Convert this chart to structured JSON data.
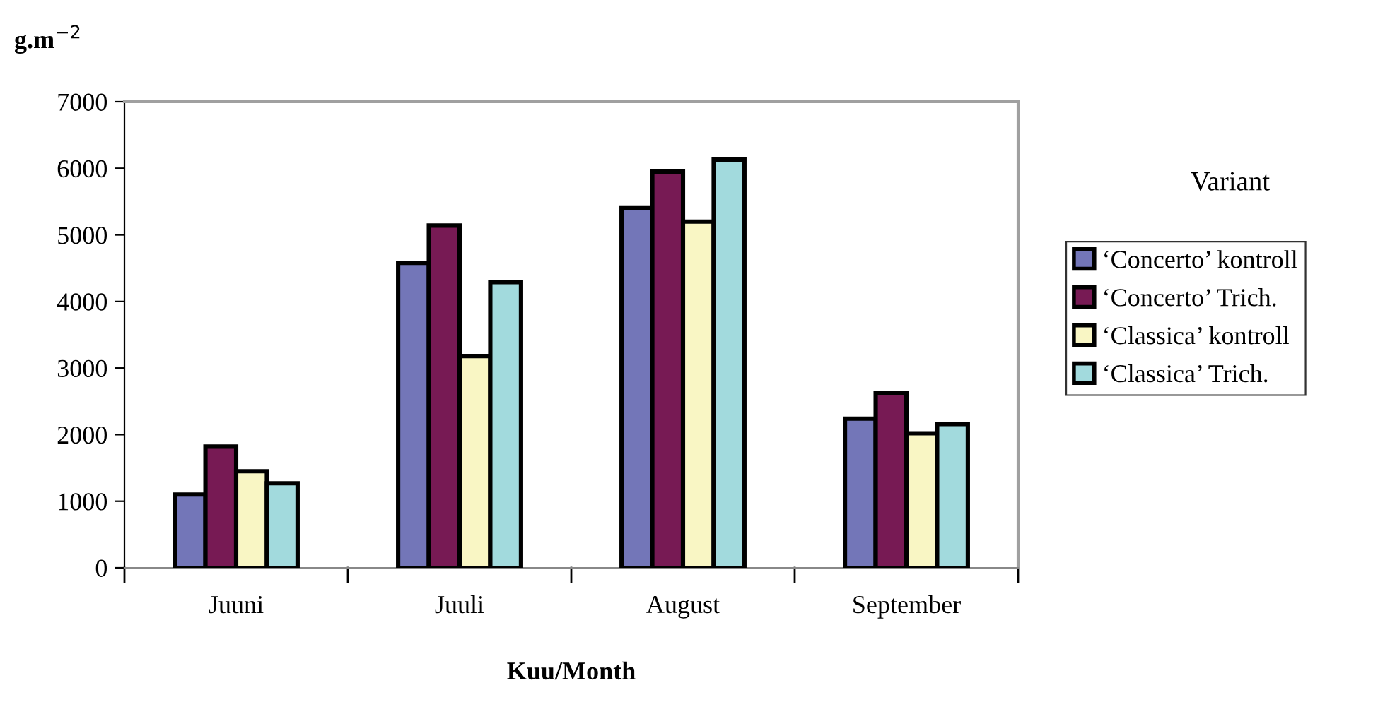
{
  "chart_data": {
    "type": "bar",
    "ylabel": "g.m$^{−2}$",
    "xlabel": "Kuu/Month",
    "legend_title": "Variant",
    "categories": [
      "Juuni",
      "Juuli",
      "August",
      "September"
    ],
    "series": [
      {
        "name": "‘Concerto’ kontroll",
        "color": "#7376b8",
        "values": [
          1100,
          4580,
          5410,
          2240
        ]
      },
      {
        "name": "‘Concerto’ Trich.",
        "color": "#771a54",
        "values": [
          1820,
          5140,
          5950,
          2630
        ]
      },
      {
        "name": "‘Classica’ kontroll",
        "color": "#f9f6c4",
        "values": [
          1450,
          3180,
          5200,
          2020
        ]
      },
      {
        "name": "‘Classica’ Trich.",
        "color": "#a2dadd",
        "values": [
          1270,
          4290,
          6130,
          2160
        ]
      }
    ],
    "ylim": [
      0,
      7000
    ],
    "yticks": [
      0,
      1000,
      2000,
      3000,
      4000,
      5000,
      6000,
      7000
    ],
    "grid": false,
    "legend": "right"
  }
}
